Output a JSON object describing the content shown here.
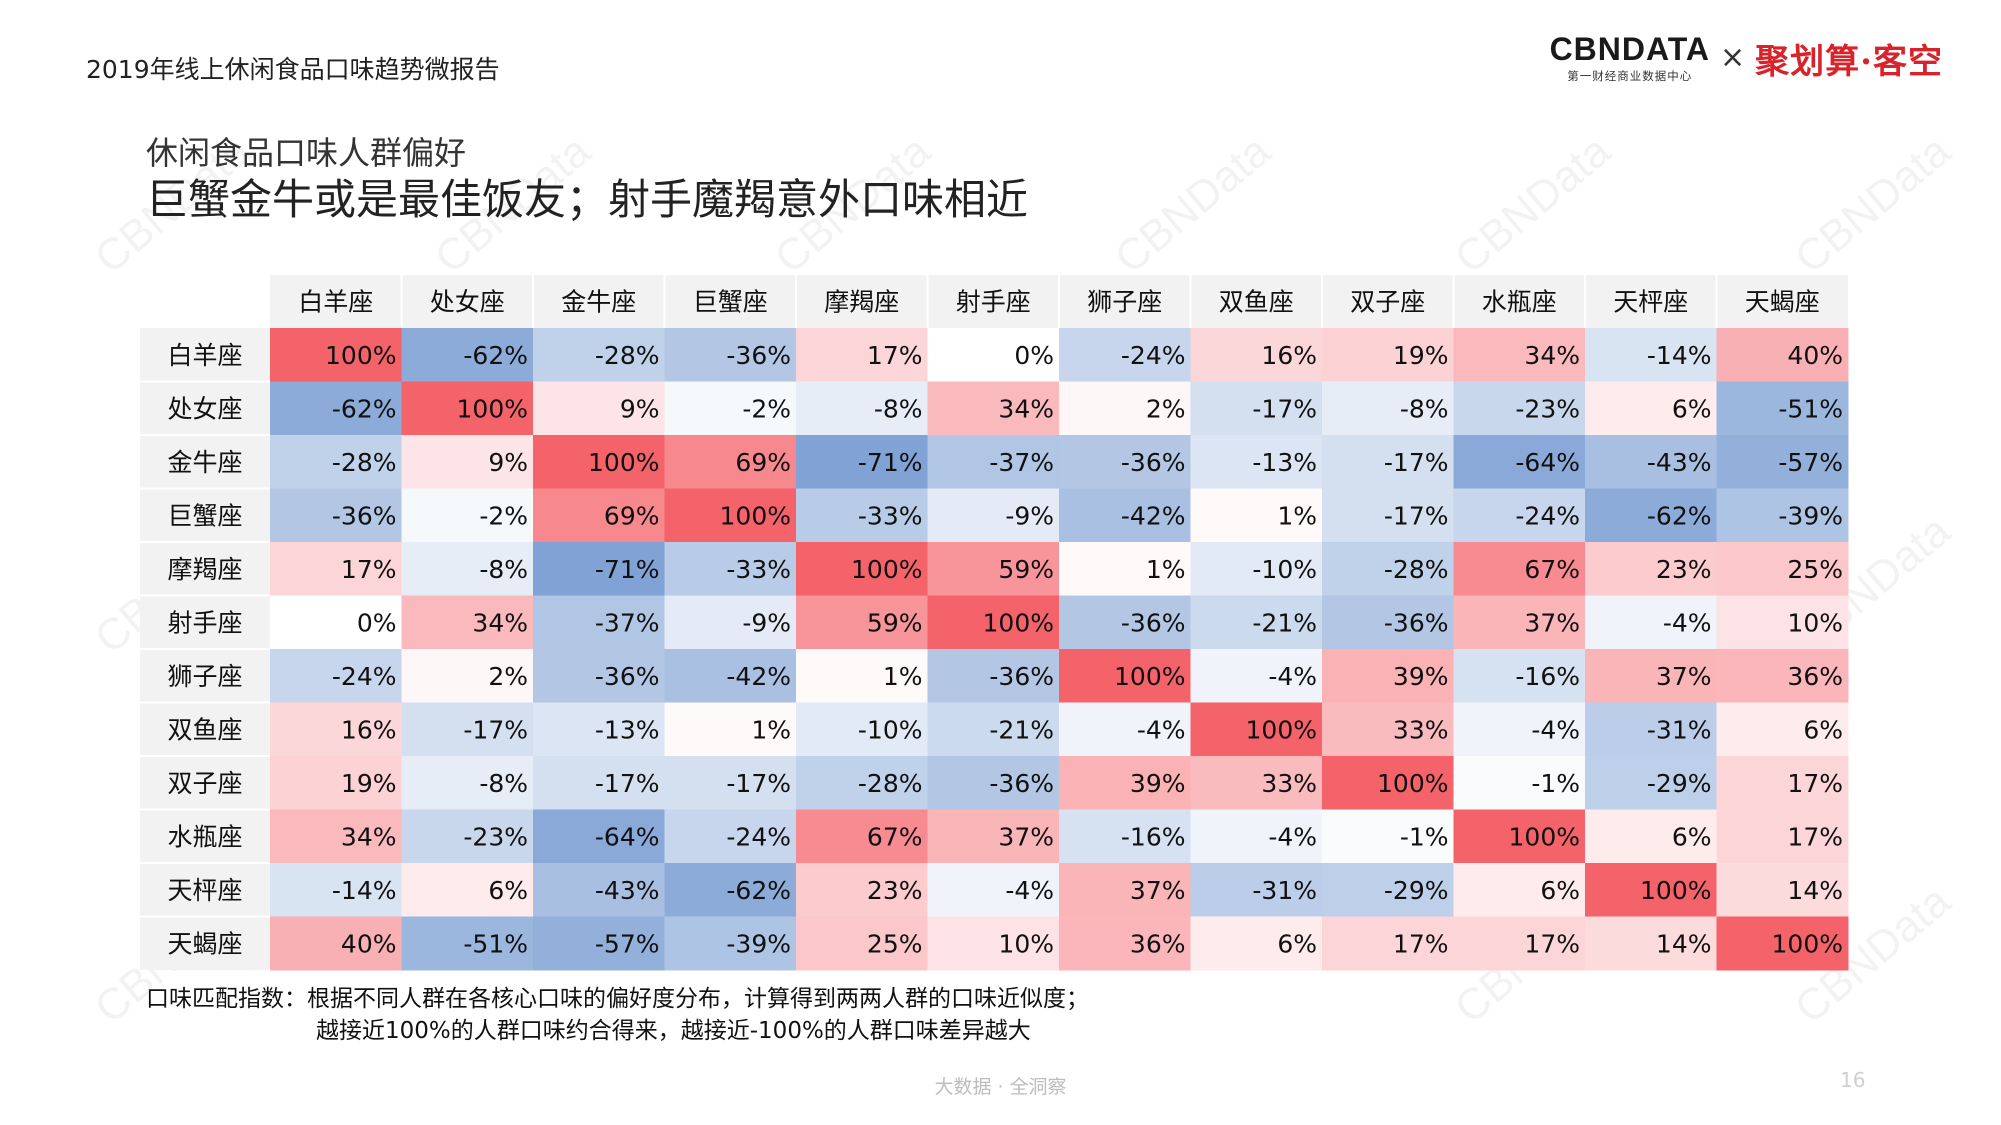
{
  "header": {
    "report_title": "2019年线上休闲食品口味趋势微报告",
    "logo_name": "CBNDATA",
    "logo_sub": "第一财经商业数据中心",
    "logo_times": "×",
    "partner_name": "聚划算·客空"
  },
  "slide": {
    "subtitle": "休闲食品口味人群偏好",
    "headline": "巨蟹金牛或是最佳饭友；射手魔羯意外口味相近"
  },
  "chart_data": {
    "type": "heatmap",
    "columns": [
      "白羊座",
      "处女座",
      "金牛座",
      "巨蟹座",
      "摩羯座",
      "射手座",
      "狮子座",
      "双鱼座",
      "双子座",
      "水瓶座",
      "天枰座",
      "天蝎座"
    ],
    "rows": [
      "白羊座",
      "处女座",
      "金牛座",
      "巨蟹座",
      "摩羯座",
      "射手座",
      "狮子座",
      "双鱼座",
      "双子座",
      "水瓶座",
      "天枰座",
      "天蝎座"
    ],
    "values": [
      [
        100,
        -62,
        -28,
        -36,
        17,
        0,
        -24,
        16,
        19,
        34,
        -14,
        40
      ],
      [
        -62,
        100,
        9,
        -2,
        -8,
        34,
        2,
        -17,
        -8,
        -23,
        6,
        -51
      ],
      [
        -28,
        9,
        100,
        69,
        -71,
        -37,
        -36,
        -13,
        -17,
        -64,
        -43,
        -57
      ],
      [
        -36,
        -2,
        69,
        100,
        -33,
        -9,
        -42,
        1,
        -17,
        -24,
        -62,
        -39
      ],
      [
        17,
        -8,
        -71,
        -33,
        100,
        59,
        1,
        -10,
        -28,
        67,
        23,
        25
      ],
      [
        0,
        34,
        -37,
        -9,
        59,
        100,
        -36,
        -21,
        -36,
        37,
        -4,
        10
      ],
      [
        -24,
        2,
        -36,
        -42,
        1,
        -36,
        100,
        -4,
        39,
        -16,
        37,
        36
      ],
      [
        16,
        -17,
        -13,
        1,
        -10,
        -21,
        -4,
        100,
        33,
        -4,
        -31,
        6
      ],
      [
        19,
        -8,
        -17,
        -17,
        -28,
        -36,
        39,
        33,
        100,
        -1,
        -29,
        17
      ],
      [
        34,
        -23,
        -64,
        -24,
        67,
        37,
        -16,
        -4,
        -1,
        100,
        6,
        17
      ],
      [
        -14,
        6,
        -43,
        -62,
        23,
        -4,
        37,
        -31,
        -29,
        6,
        100,
        14
      ],
      [
        40,
        -51,
        -57,
        -39,
        25,
        10,
        36,
        6,
        17,
        17,
        14,
        100
      ]
    ],
    "value_suffix": "%",
    "value_range": [
      -100,
      100
    ],
    "colors": {
      "positive": "#f4626a",
      "negative": "#5b87c8",
      "neutral": "#ffffff",
      "label_bg": "#f2f2f2",
      "header_bg": "#f2f2f2"
    }
  },
  "note": {
    "line1": "口味匹配指数：根据不同人群在各核心口味的偏好度分布，计算得到两两人群的口味近似度；",
    "line2": "越接近100%的人群口味约合得来，越接近-100%的人群口味差异越大"
  },
  "footer": {
    "slogan": "大数据 · 全洞察",
    "page_number": "16"
  },
  "watermark_text": "CBNData"
}
